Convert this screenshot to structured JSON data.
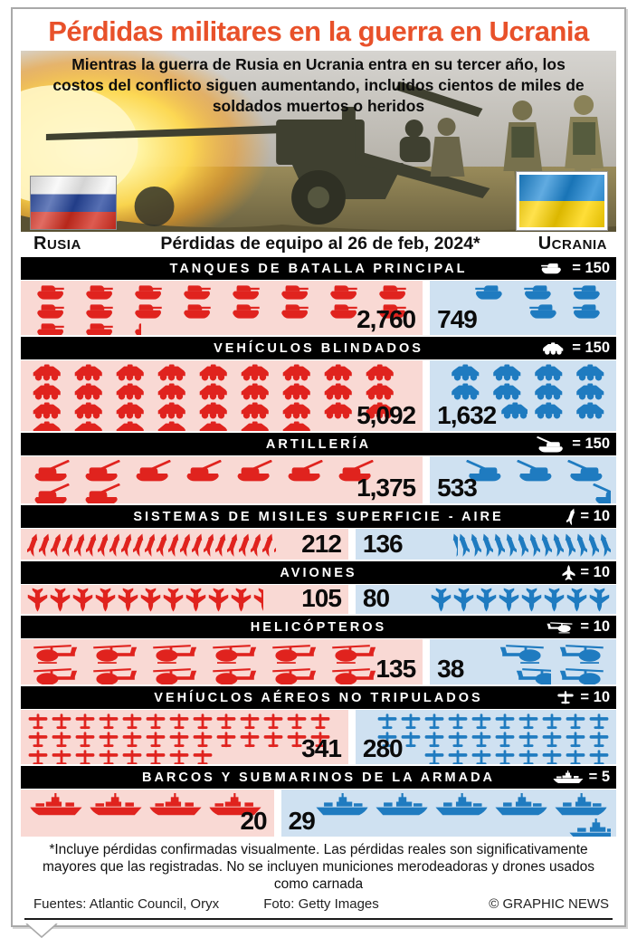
{
  "title": "Pérdidas militares en la guerra en Ucrania",
  "subtitle": "Mientras la guerra de Rusia en Ucrania entra en su tercer año, los costos del conflicto siguen aumentando, incluidos cientos de miles de soldados muertos o heridos",
  "flags": {
    "russia_label": "RUSIA",
    "ukraine_label": "UCRANIA"
  },
  "date_heading": "Pérdidas de equipo al 26 de feb, 2024*",
  "categories": [
    {
      "label": "TANQUES DE BATALLA PRINCIPAL",
      "key": "tank",
      "icon": "tank-icon",
      "unit": 150,
      "unit_label": "= 150",
      "russia": 2760,
      "ukraine": 749,
      "russia_display": "2,760",
      "ukraine_display": "749"
    },
    {
      "label": "VEHÍCULOS BLINDADOS",
      "key": "apc",
      "icon": "armored-vehicle-icon",
      "unit": 150,
      "unit_label": "= 150",
      "russia": 5092,
      "ukraine": 1632,
      "russia_display": "5,092",
      "ukraine_display": "1,632"
    },
    {
      "label": "ARTILLERÍA",
      "key": "art",
      "icon": "artillery-icon",
      "unit": 150,
      "unit_label": "= 150",
      "russia": 1375,
      "ukraine": 533,
      "russia_display": "1,375",
      "ukraine_display": "533"
    },
    {
      "label": "SISTEMAS DE MISILES SUPERFICIE - AIRE",
      "key": "missile",
      "icon": "missile-icon",
      "unit": 10,
      "unit_label": "= 10",
      "russia": 212,
      "ukraine": 136,
      "russia_display": "212",
      "ukraine_display": "136"
    },
    {
      "label": "AVIONES",
      "key": "jet",
      "icon": "jet-icon",
      "unit": 10,
      "unit_label": "= 10",
      "russia": 105,
      "ukraine": 80,
      "russia_display": "105",
      "ukraine_display": "80"
    },
    {
      "label": "HELICÓPTEROS",
      "key": "helo",
      "icon": "helicopter-icon",
      "unit": 10,
      "unit_label": "= 10",
      "russia": 135,
      "ukraine": 38,
      "russia_display": "135",
      "ukraine_display": "38"
    },
    {
      "label": "VEHÍUCLOS AÉREOS NO TRIPULADOS",
      "key": "drone",
      "icon": "drone-icon",
      "unit": 10,
      "unit_label": "= 10",
      "russia": 341,
      "ukraine": 280,
      "russia_display": "341",
      "ukraine_display": "280"
    },
    {
      "label": "BARCOS Y SUBMARINOS DE LA ARMADA",
      "key": "ship",
      "icon": "warship-icon",
      "unit": 5,
      "unit_label": "= 5",
      "russia": 20,
      "ukraine": 29,
      "russia_display": "20",
      "ukraine_display": "29"
    }
  ],
  "footnote": "*Incluye pérdidas confirmadas visualmente. Las pérdidas reales son significativamente mayores que las registradas. No se incluyen municiones merodeadoras y drones usados como carnada",
  "credits": {
    "sources": "Fuentes: Atlantic Council, Oryx",
    "photo": "Foto: Getty Images",
    "copyright": "© GRAPHIC NEWS"
  },
  "colors": {
    "russia": "#e0231e",
    "russia_bg": "#f9d9d4",
    "ukraine": "#1f7bc0",
    "ukraine_bg": "#cfe1f1",
    "title": "#e8512a",
    "header_bar": "#000000"
  },
  "chart_data": {
    "type": "bar",
    "subtype": "pictogram",
    "title": "Pérdidas de equipo al 26 de feb, 2024*",
    "categories": [
      "Tanques de batalla principal",
      "Vehículos blindados",
      "Artillería",
      "Sistemas de misiles superficie - aire",
      "Aviones",
      "Helicópteros",
      "Vehículos aéreos no tripulados",
      "Barcos y submarinos de la armada"
    ],
    "series": [
      {
        "name": "Rusia",
        "color": "#e0231e",
        "values": [
          2760,
          5092,
          1375,
          212,
          105,
          135,
          341,
          20
        ]
      },
      {
        "name": "Ucrania",
        "color": "#1f7bc0",
        "values": [
          749,
          1632,
          533,
          136,
          80,
          38,
          280,
          29
        ]
      }
    ],
    "icon_unit_per_category": [
      150,
      150,
      150,
      10,
      10,
      10,
      10,
      5
    ],
    "legend_position": "per-row headers",
    "grid": false
  }
}
